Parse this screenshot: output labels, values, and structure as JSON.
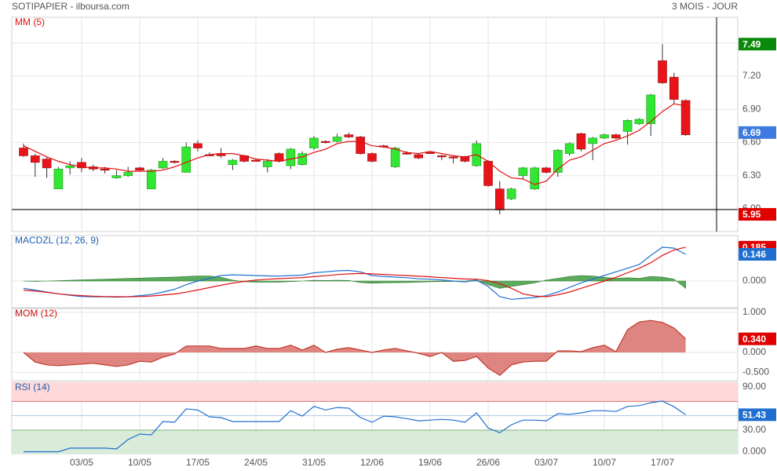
{
  "header": {
    "title": "SOTIPAPIER - ilboursa.com",
    "period": "3 MOIS - JOUR"
  },
  "chart_data": [
    {
      "type": "candlestick",
      "categories": [
        null,
        null,
        null,
        null,
        null,
        "03/05",
        null,
        null,
        null,
        null,
        "10/05",
        null,
        null,
        null,
        null,
        "17/05",
        null,
        null,
        null,
        null,
        "24/05",
        null,
        null,
        null,
        null,
        "31/05",
        null,
        null,
        null,
        null,
        "12/06",
        null,
        null,
        null,
        null,
        "19/06",
        null,
        null,
        null,
        null,
        "26/06",
        null,
        null,
        null,
        null,
        "03/07",
        null,
        null,
        null,
        null,
        "10/07",
        null,
        null,
        null,
        null,
        "17/07",
        null,
        null
      ],
      "open": [
        6.55,
        6.48,
        6.45,
        6.18,
        6.37,
        6.42,
        6.38,
        6.36,
        6.28,
        6.3,
        6.37,
        6.18,
        6.37,
        6.43,
        6.33,
        6.59,
        6.49,
        6.5,
        6.4,
        6.48,
        6.44,
        6.38,
        6.5,
        6.39,
        6.4,
        6.55,
        6.61,
        6.61,
        6.67,
        6.65,
        6.5,
        6.57,
        6.38,
        6.505,
        6.49,
        6.51,
        6.48,
        6.47,
        6.47,
        6.39,
        6.43,
        6.18,
        6.09,
        6.3,
        6.18,
        6.37,
        6.33,
        6.5,
        6.68,
        6.59,
        6.64,
        6.67,
        6.7,
        6.77,
        6.77,
        7.34,
        7.19,
        6.98
      ],
      "high": [
        6.59,
        6.5,
        6.47,
        6.38,
        6.43,
        6.46,
        6.4,
        6.38,
        6.35,
        6.38,
        6.38,
        6.36,
        6.46,
        6.44,
        6.6,
        6.62,
        6.51,
        6.55,
        6.45,
        6.49,
        6.45,
        6.45,
        6.51,
        6.55,
        6.52,
        6.66,
        6.62,
        6.68,
        6.69,
        6.66,
        6.51,
        6.58,
        6.56,
        6.52,
        6.5,
        6.52,
        6.49,
        6.48,
        6.48,
        6.62,
        6.44,
        6.25,
        6.19,
        6.38,
        6.38,
        6.38,
        6.54,
        6.6,
        6.69,
        6.65,
        6.68,
        6.68,
        6.81,
        6.82,
        7.04,
        7.49,
        7.23,
        6.99
      ],
      "low": [
        6.47,
        6.29,
        6.28,
        6.18,
        6.31,
        6.33,
        6.34,
        6.32,
        6.27,
        6.29,
        6.34,
        6.18,
        6.36,
        6.41,
        6.33,
        6.52,
        6.48,
        6.46,
        6.35,
        6.42,
        6.43,
        6.33,
        6.42,
        6.36,
        6.39,
        6.53,
        6.59,
        6.6,
        6.64,
        6.49,
        6.42,
        6.55,
        6.37,
        6.49,
        6.45,
        6.5,
        6.44,
        6.41,
        6.42,
        6.38,
        6.2,
        5.95,
        6.08,
        6.27,
        6.17,
        6.32,
        6.29,
        6.48,
        6.52,
        6.44,
        6.63,
        6.63,
        6.58,
        6.76,
        6.66,
        7.13,
        6.95,
        6.66
      ],
      "close": [
        6.48,
        6.42,
        6.37,
        6.36,
        6.39,
        6.37,
        6.36,
        6.355,
        6.3,
        6.33,
        6.35,
        6.35,
        6.43,
        6.425,
        6.56,
        6.55,
        6.485,
        6.48,
        6.44,
        6.43,
        6.435,
        6.43,
        6.43,
        6.54,
        6.5,
        6.64,
        6.605,
        6.65,
        6.65,
        6.5,
        6.43,
        6.565,
        6.55,
        6.5,
        6.46,
        6.505,
        6.475,
        6.465,
        6.43,
        6.59,
        6.21,
        5.99,
        6.18,
        6.37,
        6.37,
        6.33,
        6.53,
        6.59,
        6.54,
        6.64,
        6.67,
        6.64,
        6.8,
        6.81,
        7.03,
        7.14,
        6.99,
        6.67
      ],
      "up_color": "#33e633",
      "down_color": "#e8141a",
      "series": [
        {
          "name": "MM (5)",
          "color": "#e01010",
          "values": [
            6.57,
            6.52,
            6.47,
            6.43,
            6.4,
            6.38,
            6.37,
            6.37,
            6.36,
            6.34,
            6.34,
            6.34,
            6.35,
            6.38,
            6.42,
            6.46,
            6.49,
            6.5,
            6.5,
            6.48,
            6.45,
            6.44,
            6.43,
            6.45,
            6.47,
            6.51,
            6.54,
            6.59,
            6.61,
            6.61,
            6.57,
            6.56,
            6.54,
            6.51,
            6.5,
            6.52,
            6.5,
            6.48,
            6.47,
            6.49,
            6.43,
            6.34,
            6.28,
            6.27,
            6.22,
            6.25,
            6.36,
            6.44,
            6.47,
            6.53,
            6.59,
            6.62,
            6.66,
            6.71,
            6.79,
            6.88,
            6.95,
            6.93
          ]
        }
      ],
      "title_color": "#e01010",
      "ylim": [
        5.794,
        7.733
      ],
      "yticks": [
        {
          "value": 6,
          "label": "6.00"
        },
        {
          "value": 6.3,
          "label": "6.30"
        },
        {
          "value": 6.6,
          "label": "6.60"
        },
        {
          "value": 6.9,
          "label": "6.90"
        },
        {
          "value": 7.2,
          "label": "7.20"
        },
        {
          "value": 7.5,
          "label": "7.50"
        }
      ],
      "last_values": [
        {
          "value": 7.49,
          "color": "#0a8a0a"
        },
        {
          "value": 6.69,
          "color": "#3d7be0"
        },
        {
          "value": 5.95,
          "color": "#e00000"
        }
      ]
    },
    {
      "type": "line",
      "title": "MACDZL (12, 26, 9)",
      "title_color": "#1f5fb0",
      "series": [
        {
          "color": "#1f6fd1",
          "values": [
            -0.04,
            -0.05,
            -0.06,
            -0.07,
            -0.078,
            -0.085,
            -0.086,
            -0.086,
            -0.088,
            -0.086,
            -0.08,
            -0.074,
            -0.06,
            -0.045,
            -0.02,
            0.0,
            0.015,
            0.03,
            0.034,
            0.032,
            0.03,
            0.028,
            0.027,
            0.03,
            0.032,
            0.045,
            0.05,
            0.056,
            0.058,
            0.05,
            0.03,
            0.025,
            0.022,
            0.018,
            0.012,
            0.01,
            0.006,
            0.0,
            -0.005,
            0.005,
            -0.03,
            -0.085,
            -0.1,
            -0.095,
            -0.09,
            -0.08,
            -0.06,
            -0.035,
            -0.01,
            0.01,
            0.03,
            0.05,
            0.07,
            0.09,
            0.14,
            0.185,
            0.18,
            0.146
          ]
        },
        {
          "color": "#e01010",
          "values": [
            -0.05,
            -0.055,
            -0.062,
            -0.07,
            -0.076,
            -0.08,
            -0.083,
            -0.085,
            -0.086,
            -0.086,
            -0.085,
            -0.082,
            -0.077,
            -0.071,
            -0.061,
            -0.049,
            -0.036,
            -0.023,
            -0.011,
            -0.002,
            0.005,
            0.01,
            0.013,
            0.016,
            0.019,
            0.024,
            0.029,
            0.035,
            0.039,
            0.041,
            0.039,
            0.036,
            0.033,
            0.03,
            0.026,
            0.023,
            0.019,
            0.015,
            0.011,
            0.01,
            0.002,
            -0.015,
            -0.04,
            -0.07,
            -0.082,
            -0.086,
            -0.075,
            -0.06,
            -0.04,
            -0.02,
            0.0,
            0.02,
            0.045,
            0.07,
            0.1,
            0.14,
            0.17,
            0.185
          ]
        }
      ],
      "histogram": {
        "color": "#3f9b3f",
        "values": [
          0.0,
          -0.002,
          0.0,
          0.002,
          0.004,
          0.006,
          0.008,
          0.01,
          0.012,
          0.014,
          0.016,
          0.018,
          0.02,
          0.022,
          0.025,
          0.028,
          0.028,
          0.02,
          0.005,
          -0.004,
          -0.006,
          -0.006,
          -0.006,
          -0.003,
          0.0,
          0.004,
          0.003,
          0.004,
          0.003,
          -0.008,
          -0.012,
          -0.01,
          -0.009,
          -0.008,
          -0.006,
          -0.004,
          -0.003,
          -0.002,
          0.0,
          0.006,
          -0.02,
          -0.04,
          -0.03,
          -0.02,
          -0.01,
          0.005,
          0.015,
          0.025,
          0.03,
          0.028,
          0.02,
          0.015,
          0.018,
          0.015,
          0.025,
          0.022,
          0.01,
          -0.04
        ]
      },
      "ylim": [
        -0.146,
        0.249
      ],
      "yticks": [
        {
          "value": 0,
          "label": "0.000"
        }
      ],
      "last_values": [
        {
          "value": 0.185,
          "color": "#e00000"
        },
        {
          "value": 0.146,
          "color": "#1f6fd1"
        }
      ]
    },
    {
      "type": "area",
      "title": "MOM (12)",
      "title_color": "#cc1010",
      "series": [
        {
          "color": "#c0392b",
          "fill": "#d9706b",
          "values": [
            0,
            -0.24,
            -0.31,
            -0.33,
            -0.31,
            -0.29,
            -0.27,
            -0.31,
            -0.35,
            -0.31,
            -0.22,
            -0.24,
            -0.12,
            -0.04,
            0.16,
            0.16,
            0.16,
            0.1,
            0.1,
            0.1,
            0.16,
            0.1,
            0.1,
            0.18,
            0.06,
            0.18,
            0,
            0.08,
            0.12,
            0.06,
            0,
            0.06,
            0.1,
            0.04,
            -0.02,
            -0.1,
            0,
            -0.22,
            -0.2,
            -0.1,
            -0.39,
            -0.57,
            -0.31,
            -0.24,
            -0.22,
            -0.22,
            0.04,
            0.04,
            0.02,
            0.12,
            0.18,
            0.02,
            0.57,
            0.76,
            0.8,
            0.75,
            0.61,
            0.34
          ]
        }
      ],
      "ylim": [
        -0.706,
        1.098
      ],
      "yticks": [
        {
          "value": 1,
          "label": "1.000"
        },
        {
          "value": 0,
          "label": "0.000"
        },
        {
          "value": -0.5,
          "label": "-0.500"
        }
      ],
      "last_values": [
        {
          "value": 0.34,
          "label": "0.340",
          "color": "#e00000"
        }
      ]
    },
    {
      "type": "line",
      "title": "RSI (14)",
      "title_color": "#1f5fb0",
      "series": [
        {
          "color": "#1f6fd1",
          "values": [
            0,
            0,
            0,
            0,
            5,
            5,
            5,
            5,
            4,
            17,
            24.5,
            23.5,
            42,
            41,
            59.5,
            58,
            48.5,
            47.5,
            42,
            42,
            42,
            42,
            42,
            57,
            49.5,
            63,
            58,
            61.5,
            60.5,
            47.5,
            41,
            49.5,
            48.5,
            46,
            43,
            44,
            45,
            44,
            41,
            54,
            33,
            26.5,
            37.5,
            44,
            44,
            43,
            53,
            52,
            54,
            57,
            57,
            56,
            63,
            64,
            68,
            70.5,
            62.5,
            51.43
          ]
        }
      ],
      "upper_band": 70,
      "lower_band": 30,
      "midline": 50,
      "ylim": [
        -2.7,
        96.5
      ],
      "yticks": [
        {
          "value": 90,
          "label": "90.00"
        },
        {
          "value": 30,
          "label": "30.00"
        },
        {
          "value": 0,
          "label": "0.000"
        }
      ],
      "last_values": [
        {
          "value": 51.43,
          "color": "#1f6fd1"
        }
      ]
    }
  ]
}
